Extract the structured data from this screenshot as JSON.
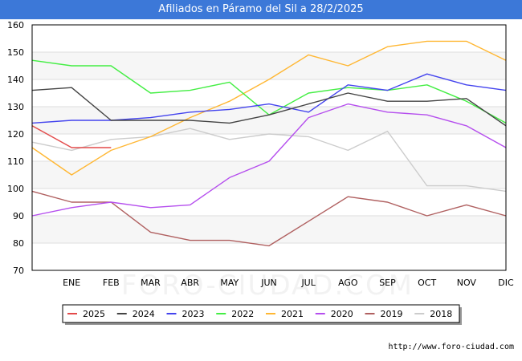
{
  "title": "Afiliados en Páramo del Sil a 28/2/2025",
  "source": "http://www.foro-ciudad.com",
  "watermark": "FORO-CIUDAD.COM",
  "chart_data": {
    "type": "line",
    "title": "Afiliados en Páramo del Sil a 28/2/2025",
    "xlabel": "",
    "ylabel": "",
    "categories": [
      "",
      "ENE",
      "FEB",
      "MAR",
      "ABR",
      "MAY",
      "JUN",
      "JUL",
      "AGO",
      "SEP",
      "OCT",
      "NOV",
      "DIC"
    ],
    "ylim": [
      70,
      160
    ],
    "yticks": [
      70,
      80,
      90,
      100,
      110,
      120,
      130,
      140,
      150,
      160
    ],
    "grid": true,
    "legend": "bottom",
    "series": [
      {
        "name": "2025",
        "color": "#e34a4a",
        "values": [
          123,
          115,
          115,
          null,
          null,
          null,
          null,
          null,
          null,
          null,
          null,
          null,
          null
        ]
      },
      {
        "name": "2024",
        "color": "#444444",
        "values": [
          136,
          137,
          125,
          125,
          125,
          124,
          127,
          131,
          135,
          132,
          132,
          133,
          123
        ]
      },
      {
        "name": "2023",
        "color": "#4444ee",
        "values": [
          124,
          125,
          125,
          126,
          128,
          129,
          131,
          128,
          138,
          136,
          142,
          138,
          136
        ]
      },
      {
        "name": "2022",
        "color": "#44ee44",
        "values": [
          147,
          145,
          145,
          135,
          136,
          139,
          127,
          135,
          137,
          136,
          138,
          132,
          124
        ]
      },
      {
        "name": "2021",
        "color": "#ffb733",
        "values": [
          115,
          105,
          114,
          119,
          126,
          132,
          140,
          149,
          145,
          152,
          154,
          154,
          147
        ]
      },
      {
        "name": "2020",
        "color": "#b54eee",
        "values": [
          90,
          93,
          95,
          93,
          94,
          104,
          110,
          126,
          131,
          128,
          127,
          123,
          115
        ]
      },
      {
        "name": "2019",
        "color": "#b06060",
        "values": [
          99,
          95,
          95,
          84,
          81,
          81,
          79,
          88,
          97,
          95,
          90,
          94,
          90
        ]
      },
      {
        "name": "2018",
        "color": "#cccccc",
        "values": [
          117,
          114,
          118,
          119,
          122,
          118,
          120,
          119,
          114,
          121,
          101,
          101,
          99
        ]
      }
    ]
  }
}
